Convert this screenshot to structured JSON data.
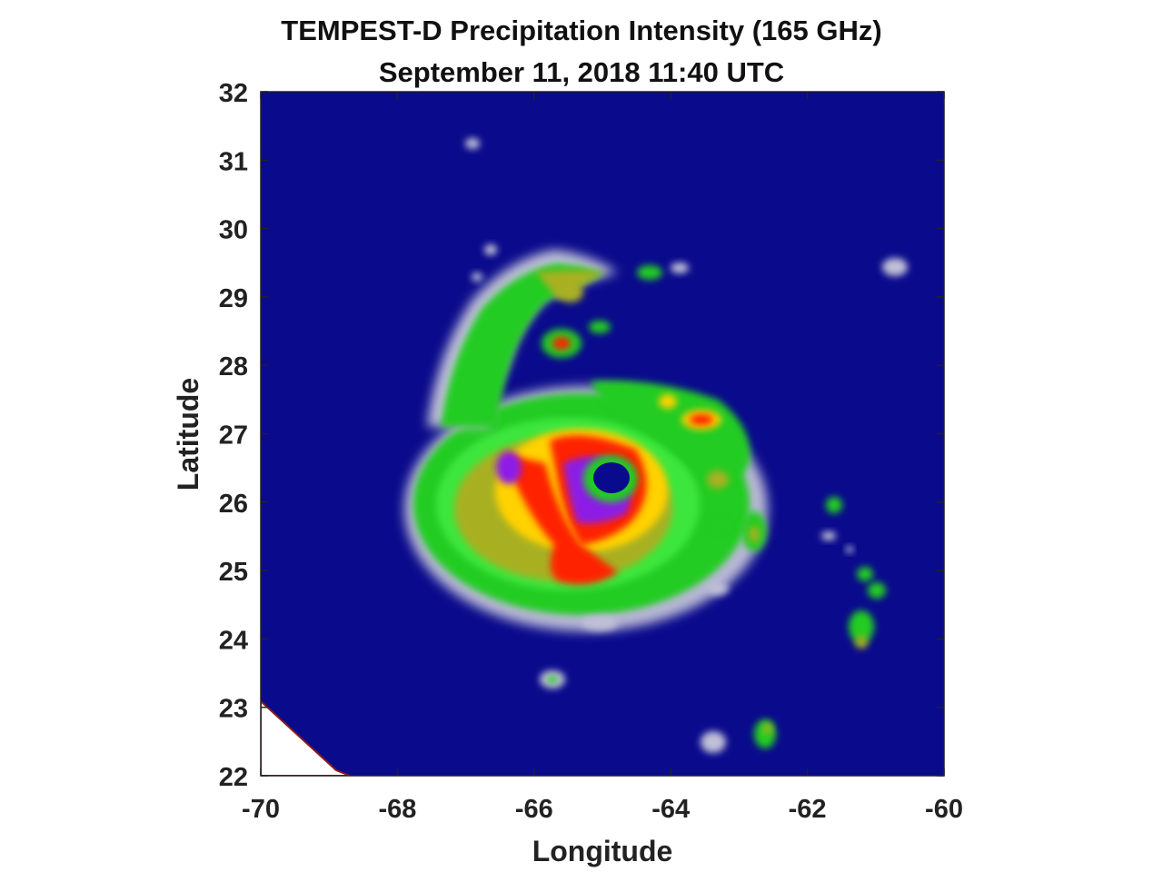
{
  "chart_data": {
    "type": "heatmap",
    "title": "TEMPEST-D Precipitation Intensity (165 GHz)",
    "subtitle": "September 11, 2018 11:40 UTC",
    "xlabel": "Longitude",
    "ylabel": "Latitude",
    "xlim": [
      -70,
      -60
    ],
    "ylim": [
      22,
      32
    ],
    "xticks": [
      -70,
      -68,
      -66,
      -64,
      -62,
      -60
    ],
    "yticks": [
      22,
      23,
      24,
      25,
      26,
      27,
      28,
      29,
      30,
      31,
      32
    ],
    "background_color": "#0a0a8c",
    "colors": {
      "low": "#c8c8dc",
      "light": "#1ed21e",
      "moderate": "#b4b41e",
      "heavy": "#ffdc00",
      "very_heavy": "#ff1e00",
      "extreme": "#8c1ee6"
    },
    "features": [
      {
        "name": "hurricane-eye",
        "lon": -65.05,
        "lat": 26.4
      },
      {
        "name": "main-rain-shield",
        "lon": -65.2,
        "lat": 26.2
      },
      {
        "name": "north-spiral-band",
        "lon": -65.6,
        "lat": 29.0
      },
      {
        "name": "northeast-cell",
        "lon": -63.6,
        "lat": 27.2
      },
      {
        "name": "east-cells",
        "lon": -61.2,
        "lat": 24.6
      },
      {
        "name": "south-cells",
        "lon": -62.6,
        "lat": 22.6
      },
      {
        "name": "isolated-north-cell",
        "lon": -66.9,
        "lat": 31.2
      },
      {
        "name": "isolated-northeast-cell",
        "lon": -60.7,
        "lat": 29.4
      }
    ]
  }
}
